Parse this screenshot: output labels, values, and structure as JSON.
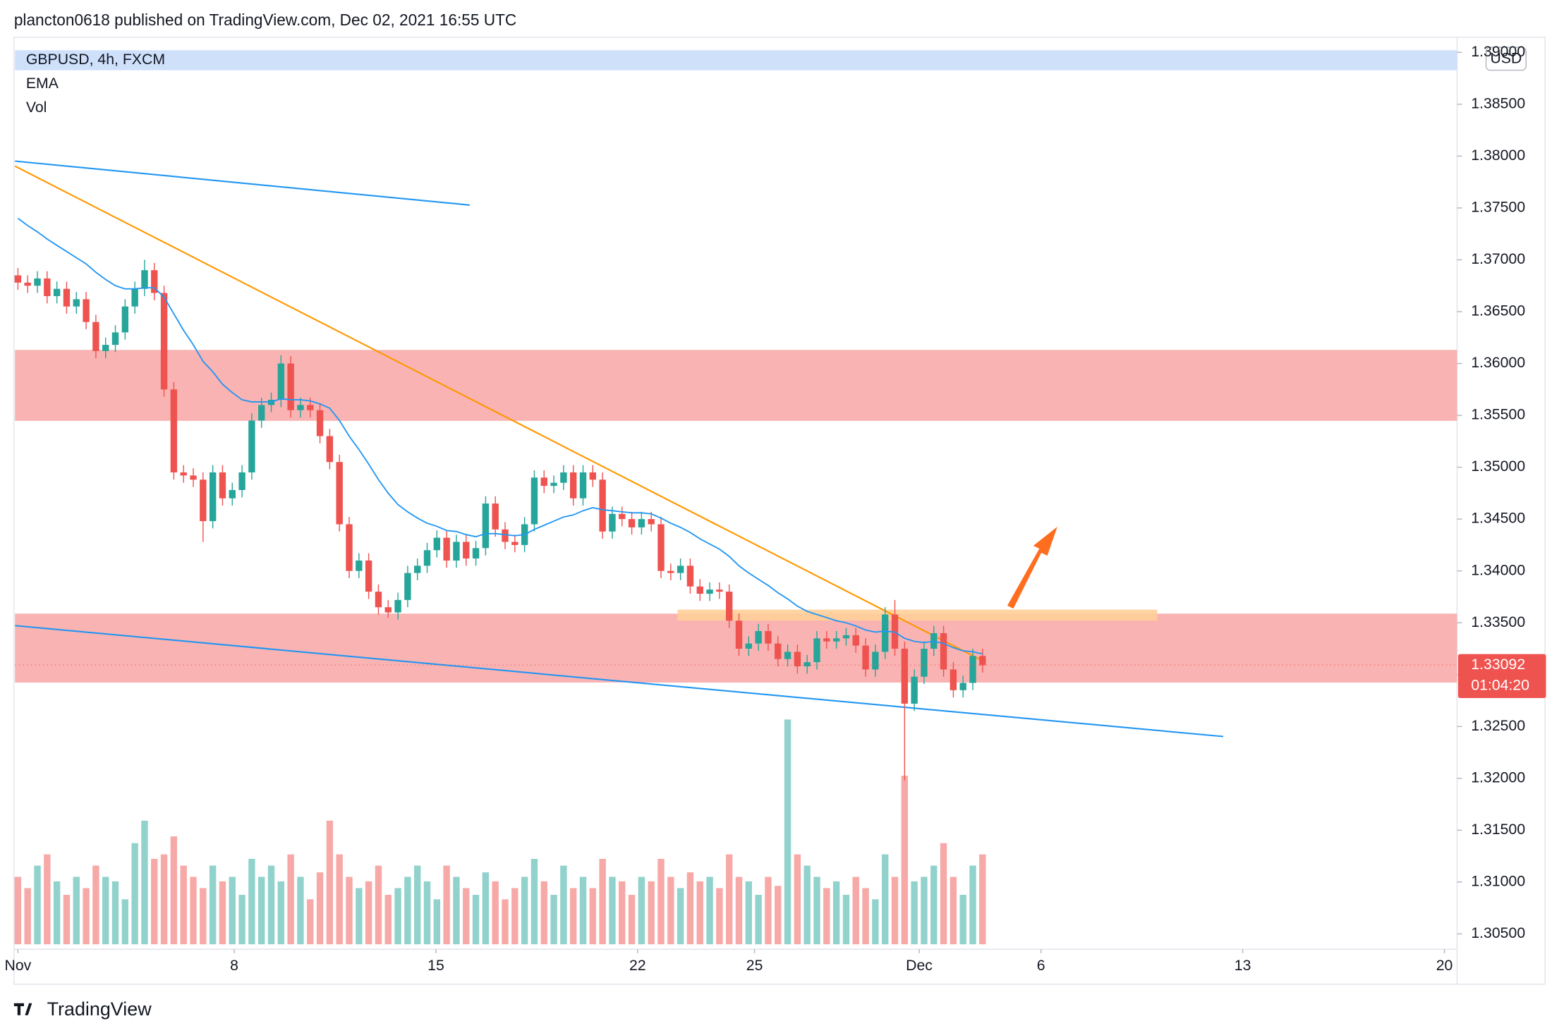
{
  "chart_data": {
    "type": "candlestick",
    "header": "plancton0618 published on TradingView.com, Dec 02, 2021 16:55 UTC",
    "symbol": "GBPUSD, 4h, FXCM",
    "indicators": [
      "EMA",
      "Vol"
    ],
    "currency": "USD",
    "last_price": 1.33092,
    "countdown": "01:04:20",
    "brand": "TradingView",
    "up_color": "#26a69a",
    "down_color": "#ef5350",
    "ema_color": "#2196f3",
    "xlim": [
      -0.3,
      147.7
    ],
    "xticks": [
      {
        "value": 0,
        "label": "Nov"
      },
      {
        "value": 22.2,
        "label": "8"
      },
      {
        "value": 42.9,
        "label": "15"
      },
      {
        "value": 63.6,
        "label": "22"
      },
      {
        "value": 75.6,
        "label": "25"
      },
      {
        "value": 92.5,
        "label": "Dec"
      },
      {
        "value": 105,
        "label": "6"
      },
      {
        "value": 125.7,
        "label": "13"
      },
      {
        "value": 146.4,
        "label": "20"
      }
    ],
    "ylim": [
      1.304,
      1.3904
    ],
    "yticks": [
      {
        "value": 1.305,
        "label": "1.30500"
      },
      {
        "value": 1.31,
        "label": "1.31000"
      },
      {
        "value": 1.315,
        "label": "1.31500"
      },
      {
        "value": 1.32,
        "label": "1.32000"
      },
      {
        "value": 1.325,
        "label": "1.32500"
      },
      {
        "value": 1.33,
        "label": "1.33000"
      },
      {
        "value": 1.335,
        "label": "1.33500"
      },
      {
        "value": 1.34,
        "label": "1.34000"
      },
      {
        "value": 1.345,
        "label": "1.34500"
      },
      {
        "value": 1.35,
        "label": "1.35000"
      },
      {
        "value": 1.355,
        "label": "1.35500"
      },
      {
        "value": 1.36,
        "label": "1.36000"
      },
      {
        "value": 1.365,
        "label": "1.36500"
      },
      {
        "value": 1.37,
        "label": "1.37000"
      },
      {
        "value": 1.375,
        "label": "1.37500"
      },
      {
        "value": 1.38,
        "label": "1.38000"
      },
      {
        "value": 1.385,
        "label": "1.38500"
      },
      {
        "value": 1.39,
        "label": "1.39000"
      }
    ],
    "open": [
      1.3685,
      1.3678,
      1.3675,
      1.3682,
      1.3665,
      1.3672,
      1.3655,
      1.3662,
      1.364,
      1.3612,
      1.3618,
      1.363,
      1.3655,
      1.3672,
      1.369,
      1.3668,
      1.3575,
      1.3495,
      1.3492,
      1.3488,
      1.3448,
      1.3495,
      1.347,
      1.3478,
      1.3495,
      1.3545,
      1.356,
      1.3565,
      1.36,
      1.3555,
      1.356,
      1.3555,
      1.353,
      1.3505,
      1.3445,
      1.34,
      1.341,
      1.338,
      1.3365,
      1.336,
      1.3372,
      1.3398,
      1.3405,
      1.342,
      1.3432,
      1.341,
      1.3428,
      1.3412,
      1.3422,
      1.3465,
      1.344,
      1.3428,
      1.3425,
      1.3445,
      1.349,
      1.3482,
      1.3485,
      1.3495,
      1.347,
      1.3495,
      1.3488,
      1.3438,
      1.3455,
      1.345,
      1.3442,
      1.345,
      1.3445,
      1.34,
      1.3398,
      1.3405,
      1.3385,
      1.3378,
      1.3382,
      1.338,
      1.3352,
      1.3325,
      1.333,
      1.3342,
      1.333,
      1.3315,
      1.3322,
      1.3308,
      1.3312,
      1.3335,
      1.3332,
      1.3335,
      1.3338,
      1.3328,
      1.3305,
      1.3322,
      1.3358,
      1.3325,
      1.3272,
      1.3298,
      1.3325,
      1.334,
      1.3305,
      1.3285,
      1.3292,
      1.3318
    ],
    "high": [
      1.3692,
      1.3685,
      1.3689,
      1.3689,
      1.3679,
      1.3679,
      1.3669,
      1.3669,
      1.3647,
      1.3625,
      1.3637,
      1.3662,
      1.3679,
      1.37,
      1.3697,
      1.3675,
      1.3582,
      1.3502,
      1.3499,
      1.3495,
      1.3502,
      1.3502,
      1.3485,
      1.3502,
      1.3552,
      1.3567,
      1.3572,
      1.3608,
      1.3607,
      1.3567,
      1.3567,
      1.3562,
      1.3537,
      1.3512,
      1.3452,
      1.3417,
      1.3417,
      1.3387,
      1.3372,
      1.3379,
      1.3405,
      1.3412,
      1.3427,
      1.3439,
      1.3439,
      1.3435,
      1.3435,
      1.3429,
      1.3472,
      1.3472,
      1.3447,
      1.3435,
      1.3452,
      1.3497,
      1.3497,
      1.3492,
      1.3502,
      1.3502,
      1.3502,
      1.3502,
      1.3495,
      1.3462,
      1.3462,
      1.3457,
      1.3457,
      1.3457,
      1.3452,
      1.3407,
      1.3412,
      1.3412,
      1.3392,
      1.3389,
      1.3389,
      1.3387,
      1.3359,
      1.3337,
      1.3349,
      1.3349,
      1.3337,
      1.3329,
      1.3329,
      1.3319,
      1.3342,
      1.3342,
      1.3342,
      1.3345,
      1.3345,
      1.3335,
      1.3329,
      1.3365,
      1.3372,
      1.3332,
      1.3305,
      1.3332,
      1.3347,
      1.3347,
      1.3312,
      1.3299,
      1.3325,
      1.3325
    ],
    "low": [
      1.3671,
      1.3668,
      1.3668,
      1.3658,
      1.3658,
      1.3648,
      1.3648,
      1.3633,
      1.3605,
      1.3605,
      1.3611,
      1.3623,
      1.3648,
      1.3665,
      1.3661,
      1.3568,
      1.3488,
      1.3485,
      1.3481,
      1.3428,
      1.3441,
      1.3463,
      1.3463,
      1.3471,
      1.3488,
      1.3538,
      1.3553,
      1.3558,
      1.3548,
      1.3548,
      1.3548,
      1.3523,
      1.3498,
      1.3438,
      1.3393,
      1.3393,
      1.3373,
      1.3358,
      1.3355,
      1.3353,
      1.3365,
      1.3391,
      1.3398,
      1.3413,
      1.3403,
      1.3403,
      1.3405,
      1.3405,
      1.3415,
      1.3433,
      1.3421,
      1.3418,
      1.3418,
      1.3438,
      1.3475,
      1.3475,
      1.3478,
      1.3463,
      1.3463,
      1.3481,
      1.3431,
      1.3431,
      1.3443,
      1.3435,
      1.3435,
      1.3438,
      1.3393,
      1.3391,
      1.3391,
      1.3378,
      1.3371,
      1.3371,
      1.3373,
      1.3345,
      1.3318,
      1.3318,
      1.3323,
      1.3323,
      1.3308,
      1.3308,
      1.3301,
      1.3301,
      1.3305,
      1.3325,
      1.3325,
      1.3328,
      1.3321,
      1.3298,
      1.3298,
      1.3315,
      1.3318,
      1.3198,
      1.3265,
      1.3291,
      1.3318,
      1.3298,
      1.3278,
      1.3278,
      1.3285,
      1.3302
    ],
    "close": [
      1.3678,
      1.3675,
      1.3682,
      1.3665,
      1.3672,
      1.3655,
      1.3662,
      1.364,
      1.3612,
      1.3618,
      1.363,
      1.3655,
      1.3672,
      1.369,
      1.3668,
      1.3575,
      1.3495,
      1.3492,
      1.3488,
      1.3448,
      1.3495,
      1.347,
      1.3478,
      1.3495,
      1.3545,
      1.356,
      1.3565,
      1.36,
      1.3555,
      1.356,
      1.3555,
      1.353,
      1.3505,
      1.3445,
      1.34,
      1.341,
      1.338,
      1.3365,
      1.336,
      1.3372,
      1.3398,
      1.3405,
      1.342,
      1.3432,
      1.341,
      1.3428,
      1.3412,
      1.3422,
      1.3465,
      1.344,
      1.3428,
      1.3425,
      1.3445,
      1.349,
      1.3482,
      1.3485,
      1.3495,
      1.347,
      1.3495,
      1.3488,
      1.3438,
      1.3455,
      1.345,
      1.3442,
      1.345,
      1.3445,
      1.34,
      1.3398,
      1.3405,
      1.3385,
      1.3378,
      1.3382,
      1.338,
      1.3352,
      1.3325,
      1.333,
      1.3342,
      1.333,
      1.3315,
      1.3322,
      1.3308,
      1.3312,
      1.3335,
      1.3332,
      1.3335,
      1.3338,
      1.3328,
      1.3305,
      1.3322,
      1.3358,
      1.3325,
      1.3272,
      1.3298,
      1.3325,
      1.334,
      1.3305,
      1.3285,
      1.3292,
      1.3318,
      1.3309
    ],
    "ema": [
      1.374,
      1.3733,
      1.3727,
      1.372,
      1.3714,
      1.3708,
      1.3702,
      1.3696,
      1.3688,
      1.3681,
      1.3675,
      1.3672,
      1.3672,
      1.3673,
      1.3673,
      1.3664,
      1.3648,
      1.3632,
      1.3618,
      1.3602,
      1.3592,
      1.358,
      1.3572,
      1.3565,
      1.3563,
      1.3563,
      1.3563,
      1.3566,
      1.3565,
      1.3565,
      1.3564,
      1.3561,
      1.3557,
      1.3545,
      1.353,
      1.3517,
      1.3503,
      1.3488,
      1.3475,
      1.3464,
      1.3457,
      1.3451,
      1.3446,
      1.3443,
      1.3439,
      1.3438,
      1.3435,
      1.3433,
      1.3436,
      1.3436,
      1.3435,
      1.3434,
      1.3435,
      1.344,
      1.3444,
      1.3448,
      1.3452,
      1.3454,
      1.3458,
      1.3461,
      1.3459,
      1.3458,
      1.3457,
      1.3456,
      1.3456,
      1.3455,
      1.3451,
      1.3446,
      1.3442,
      1.3437,
      1.3431,
      1.3426,
      1.3421,
      1.3414,
      1.3405,
      1.3398,
      1.3392,
      1.3386,
      1.3379,
      1.3373,
      1.3366,
      1.3361,
      1.3358,
      1.3355,
      1.3352,
      1.335,
      1.3347,
      1.3343,
      1.3341,
      1.3342,
      1.3341,
      1.3335,
      1.3332,
      1.3331,
      1.3332,
      1.333,
      1.3326,
      1.3323,
      1.3322,
      1.332
    ],
    "volume": [
      30,
      25,
      35,
      40,
      28,
      22,
      30,
      25,
      35,
      30,
      28,
      20,
      45,
      55,
      38,
      40,
      48,
      35,
      30,
      25,
      35,
      28,
      30,
      22,
      38,
      30,
      35,
      28,
      40,
      30,
      20,
      32,
      55,
      40,
      30,
      25,
      28,
      35,
      22,
      25,
      30,
      35,
      28,
      20,
      35,
      30,
      25,
      22,
      32,
      28,
      20,
      25,
      30,
      38,
      28,
      22,
      35,
      25,
      30,
      25,
      38,
      30,
      28,
      22,
      30,
      28,
      38,
      30,
      25,
      32,
      28,
      30,
      25,
      40,
      30,
      28,
      22,
      30,
      26,
      100,
      40,
      35,
      30,
      25,
      28,
      22,
      30,
      25,
      20,
      40,
      30,
      75,
      28,
      30,
      35,
      45,
      30,
      22,
      35,
      40
    ]
  }
}
